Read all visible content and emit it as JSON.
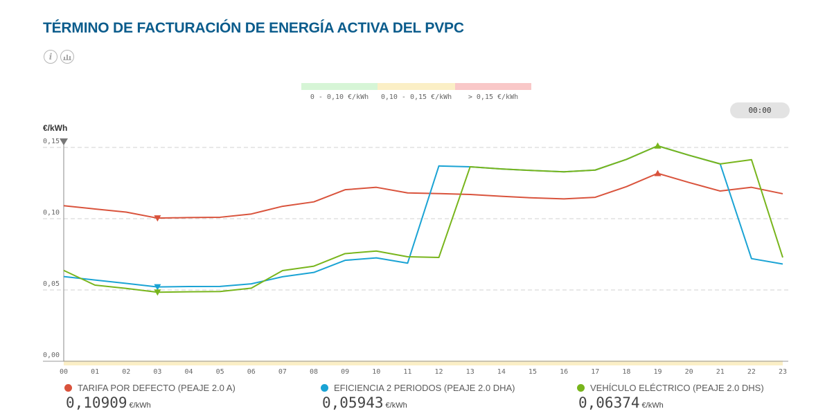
{
  "title": "TÉRMINO DE FACTURACIÓN DE ENERGÍA ACTIVA DEL PVPC",
  "icons": {
    "info": "info-icon",
    "chart": "bar-chart-icon"
  },
  "price_scale": [
    {
      "label": "0 - 0,10 €/kWh",
      "color": "#d6f5d6"
    },
    {
      "label": "0,10 - 0,15 €/kWh",
      "color": "#fbefc6"
    },
    {
      "label": "> 0,15 €/kWh",
      "color": "#f9c8c8"
    }
  ],
  "selected_time": "00:00",
  "chart_data": {
    "type": "line",
    "ylabel": "€/kWh",
    "ylim": [
      0,
      0.15
    ],
    "yticks": [
      "0,00",
      "0,05",
      "0,10",
      "0,15"
    ],
    "y_tick_values": [
      0,
      0.05,
      0.1,
      0.15
    ],
    "categories": [
      "00",
      "01",
      "02",
      "03",
      "04",
      "05",
      "06",
      "07",
      "08",
      "09",
      "10",
      "11",
      "12",
      "13",
      "14",
      "15",
      "16",
      "17",
      "18",
      "19",
      "20",
      "21",
      "22",
      "23"
    ],
    "grid": true,
    "series": [
      {
        "name": "TARIFA POR DEFECTO (PEAJE 2.0 A)",
        "color": "#d9533c",
        "current_value": "0,10909",
        "values": [
          0.1091,
          0.1068,
          0.1046,
          0.1004,
          0.1008,
          0.101,
          0.1033,
          0.1087,
          0.1118,
          0.1203,
          0.122,
          0.1181,
          0.1176,
          0.117,
          0.1157,
          0.1146,
          0.1139,
          0.115,
          0.1225,
          0.1318,
          0.1254,
          0.1194,
          0.122,
          0.1175
        ],
        "markers": [
          {
            "index": 3,
            "kind": "min"
          },
          {
            "index": 19,
            "kind": "max"
          }
        ]
      },
      {
        "name": "EFICIENCIA 2 PERIODOS (PEAJE 2.0 DHA)",
        "color": "#1aa3d4",
        "current_value": "0,05943",
        "values": [
          0.0594,
          0.057,
          0.0546,
          0.0521,
          0.0524,
          0.0525,
          0.0543,
          0.0593,
          0.0623,
          0.0708,
          0.0725,
          0.0688,
          0.137,
          0.1364,
          0.1349,
          0.1338,
          0.1329,
          0.1341,
          0.1416,
          0.1511,
          0.1445,
          0.1384,
          0.072,
          0.0682
        ],
        "markers": [
          {
            "index": 3,
            "kind": "min"
          }
        ]
      },
      {
        "name": "VEHÍCULO ELÉCTRICO (PEAJE 2.0 DHS)",
        "color": "#78b51c",
        "current_value": "0,06374",
        "values": [
          0.0637,
          0.0534,
          0.0511,
          0.0484,
          0.0487,
          0.0489,
          0.0513,
          0.0636,
          0.0667,
          0.0755,
          0.0773,
          0.0733,
          0.0728,
          0.1364,
          0.1349,
          0.1338,
          0.1329,
          0.1341,
          0.1416,
          0.1511,
          0.1445,
          0.1384,
          0.1414,
          0.0728
        ],
        "markers": [
          {
            "index": 3,
            "kind": "min"
          },
          {
            "index": 19,
            "kind": "max"
          }
        ]
      }
    ]
  },
  "value_unit": "€/kWh"
}
